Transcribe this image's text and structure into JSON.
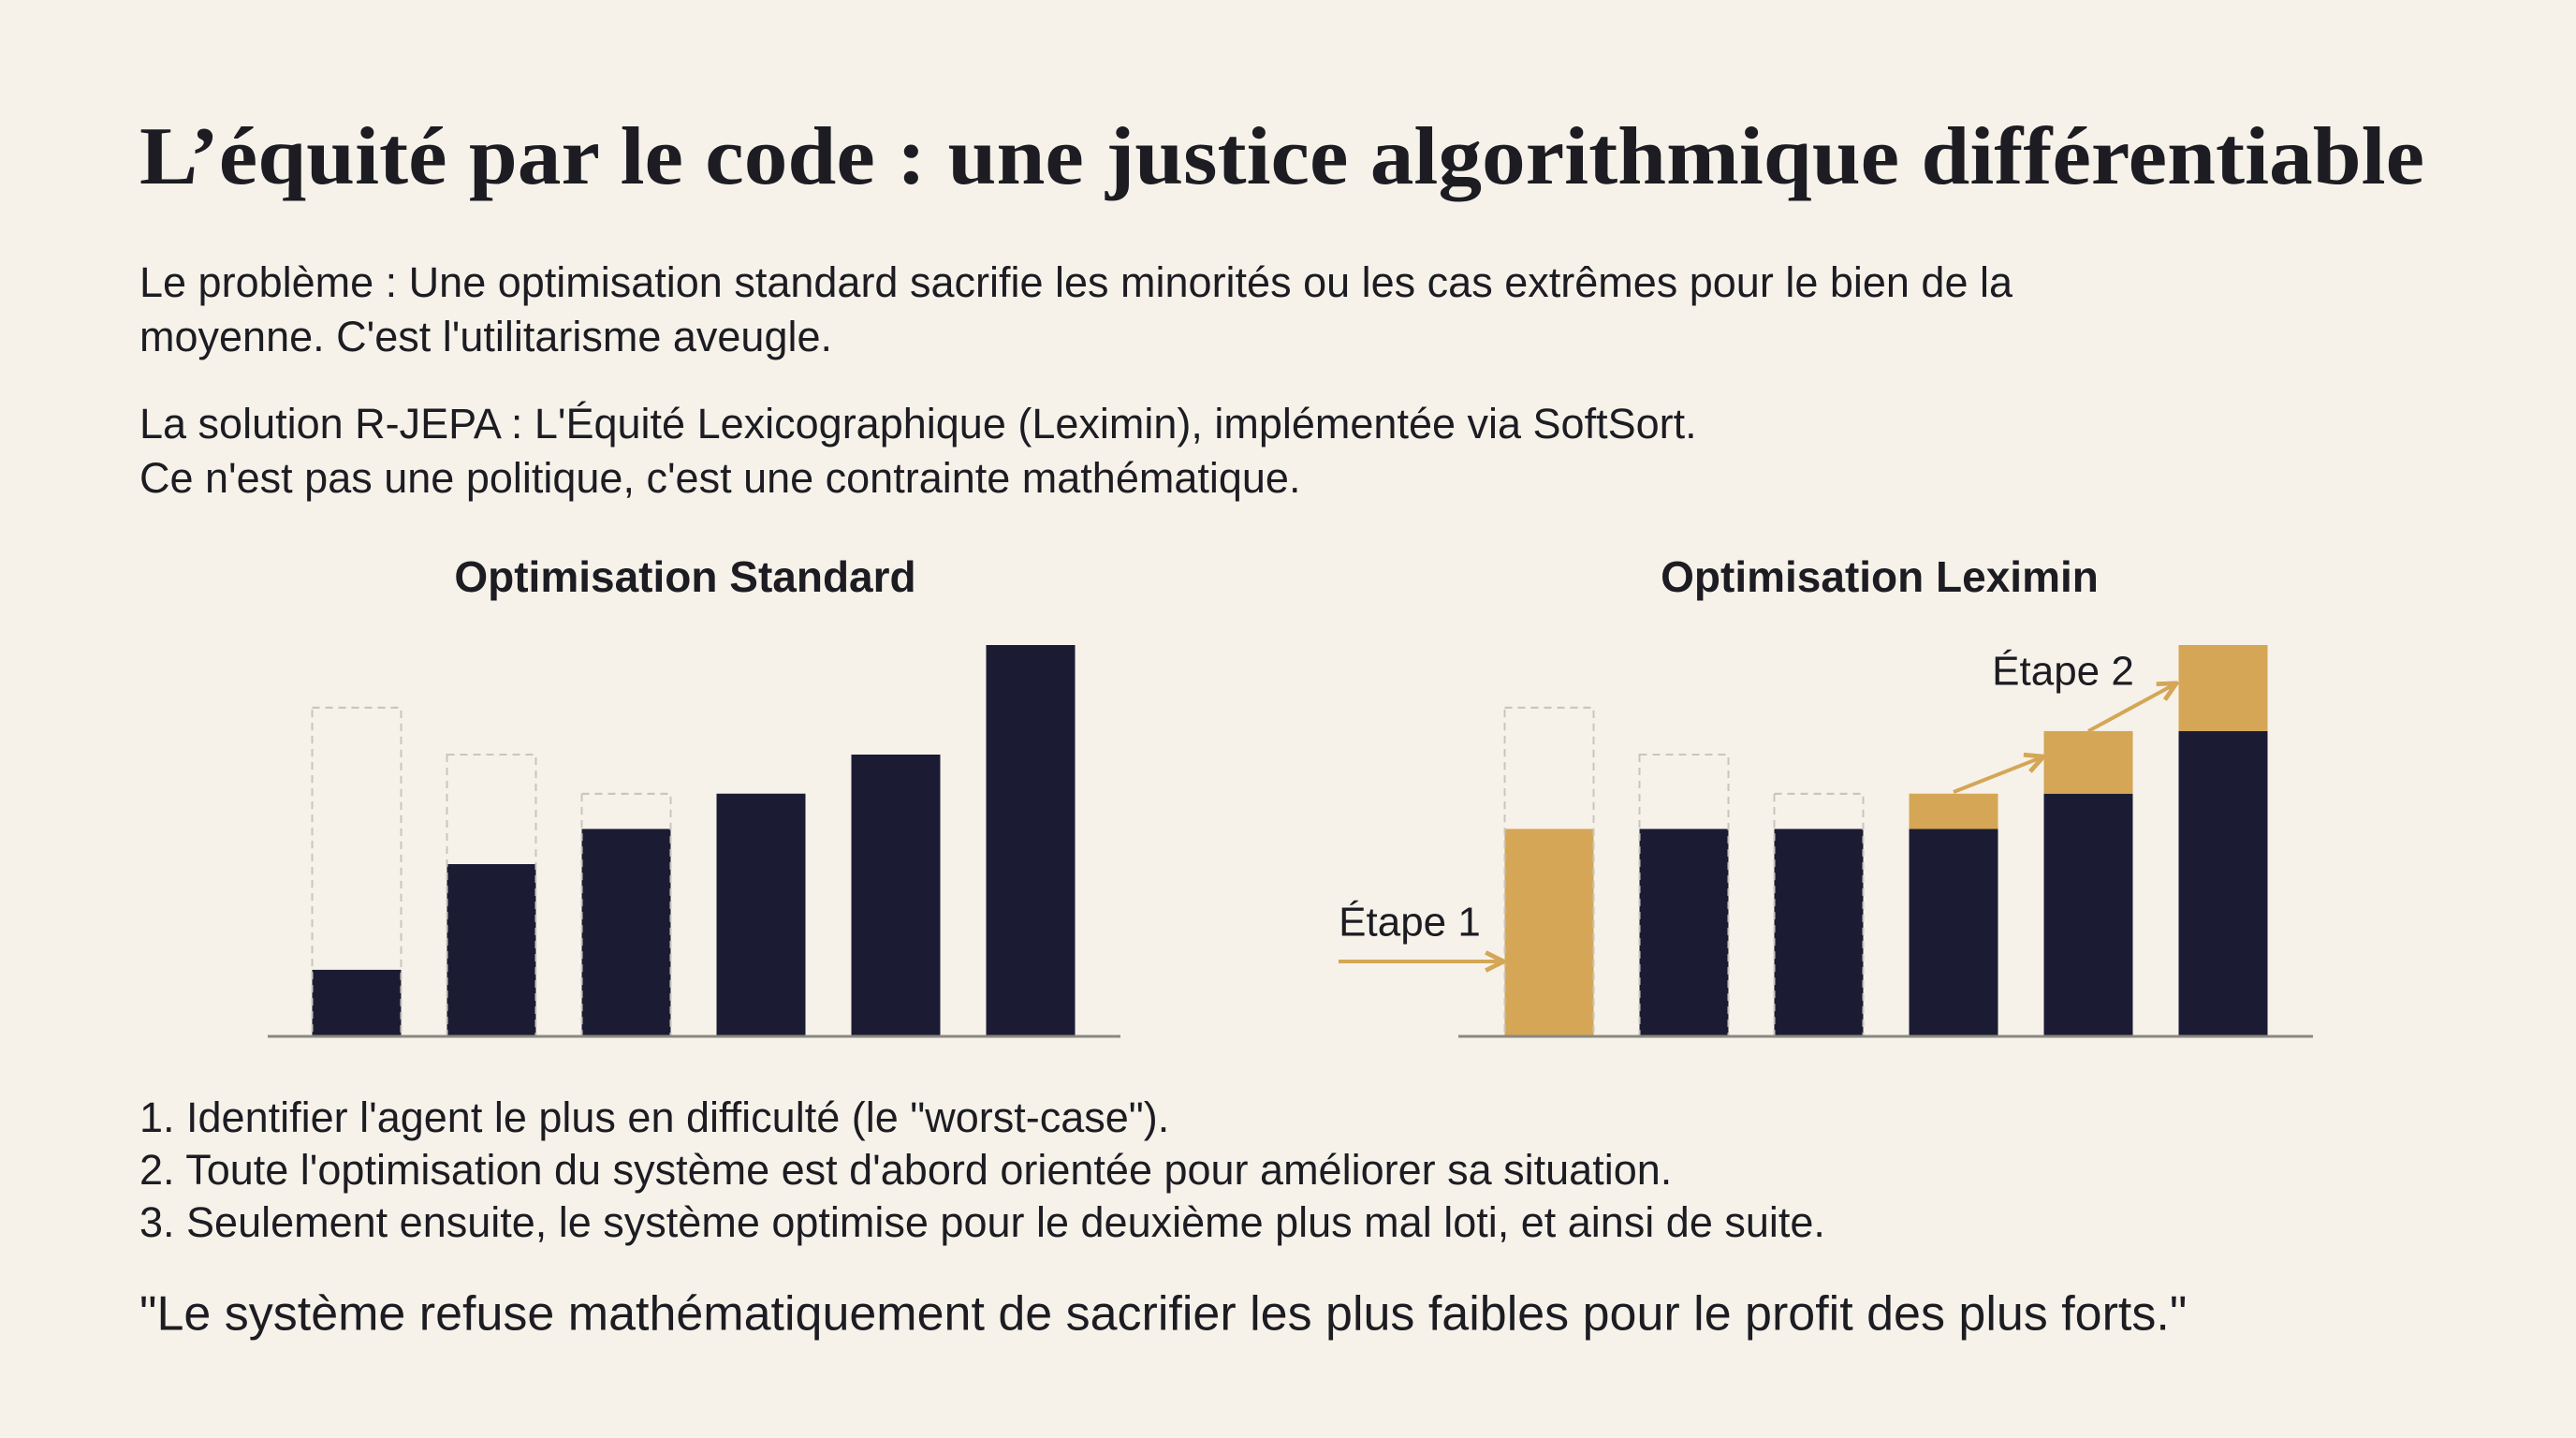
{
  "title": "L’équité par le code : une justice algorithmique différentiable",
  "problem": [
    "Le problème : Une optimisation standard sacrifie les minorités ou les cas extrêmes pour le bien de la",
    "moyenne. C'est l'utilitarisme aveugle."
  ],
  "solution": [
    "La solution R-JEPA : L'Équité Lexicographique (Leximin), implémentée via SoftSort.",
    "Ce n'est pas une politique, c'est une contrainte mathématique."
  ],
  "steps": [
    "1. Identifier l'agent le plus en difficulté (le \"worst-case\").",
    "2. Toute l'optimisation du système est d'abord orientée pour améliorer sa situation.",
    "3. Seulement ensuite, le système optimise pour le deuxième plus mal loti, et ainsi de suite."
  ],
  "quote": "\"Le système refuse mathématiquement de sacrifier les plus faibles pour le profit des plus forts.\"",
  "chart_data": [
    {
      "type": "bar",
      "title": "Optimisation Standard",
      "categories": [
        null,
        null,
        null,
        null,
        null,
        null
      ],
      "ylim": [
        0,
        100
      ],
      "series": [
        {
          "color": "#1b1c33",
          "values": [
            17,
            44,
            53,
            62,
            72,
            100
          ]
        },
        {
          "color": "#c9c5bd",
          "outline": true,
          "values": [
            84,
            72,
            62,
            null,
            null,
            null
          ]
        }
      ]
    },
    {
      "type": "bar",
      "title": "Optimisation Leximin",
      "categories": [
        null,
        null,
        null,
        null,
        null,
        null
      ],
      "ylim": [
        0,
        100
      ],
      "annotations": [
        "Étape 1",
        "Étape 2"
      ],
      "series": [
        {
          "color": "#1b1c33",
          "values": [
            0,
            53,
            53,
            53,
            62,
            78
          ]
        },
        {
          "color": "#d4a656",
          "values": [
            53,
            0,
            0,
            9,
            16,
            22
          ]
        },
        {
          "color": "#c9c5bd",
          "outline": true,
          "values": [
            84,
            72,
            62,
            null,
            null,
            null
          ]
        }
      ]
    }
  ]
}
